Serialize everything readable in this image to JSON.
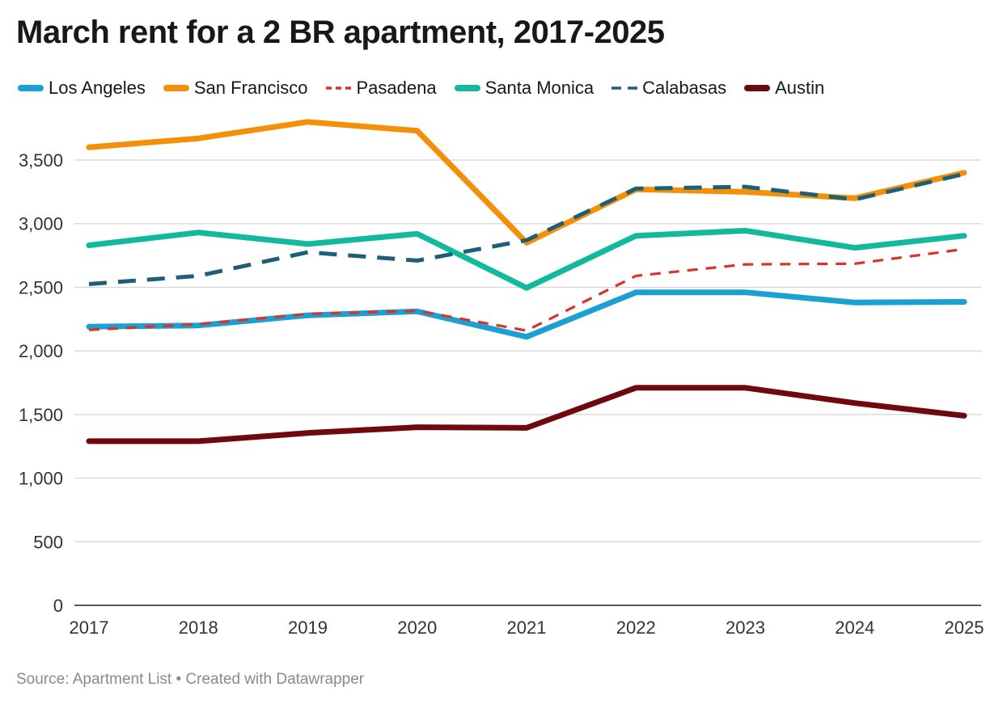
{
  "header": {
    "title": "March rent for a 2 BR apartment, 2017-2025"
  },
  "footer": {
    "source": "Source: Apartment List • Created with Datawrapper"
  },
  "chart_data": {
    "type": "line",
    "title": "March rent for a 2 BR apartment, 2017-2025",
    "xlabel": "",
    "ylabel": "",
    "x": [
      "2017",
      "2018",
      "2019",
      "2020",
      "2021",
      "2022",
      "2023",
      "2024",
      "2025"
    ],
    "y_ticks": [
      "0",
      "500",
      "1,000",
      "1,500",
      "2,000",
      "2,500",
      "3,000",
      "3,500"
    ],
    "y_tick_values": [
      0,
      500,
      1000,
      1500,
      2000,
      2500,
      3000,
      3500
    ],
    "ylim": [
      0,
      3800
    ],
    "grid": true,
    "legend_position": "top",
    "series": [
      {
        "name": "Los Angeles",
        "color": "#1aa0d2",
        "dashed": false,
        "values": [
          2190,
          2200,
          2280,
          2310,
          2110,
          2460,
          2460,
          2380,
          2385
        ]
      },
      {
        "name": "San Francisco",
        "color": "#f58f0a",
        "dashed": false,
        "values": [
          3600,
          3670,
          3800,
          3730,
          2850,
          3270,
          3250,
          3200,
          3400
        ]
      },
      {
        "name": "Pasadena",
        "color": "#d9342a",
        "dashed": true,
        "values": [
          2165,
          2210,
          2290,
          2315,
          2160,
          2590,
          2680,
          2685,
          2800
        ]
      },
      {
        "name": "Santa Monica",
        "color": "#13b99c",
        "dashed": false,
        "values": [
          2830,
          2930,
          2840,
          2920,
          2495,
          2905,
          2945,
          2810,
          2905
        ]
      },
      {
        "name": "Calabasas",
        "color": "#1d5f77",
        "dashed": true,
        "values": [
          2525,
          2590,
          2775,
          2710,
          2870,
          3275,
          3290,
          3190,
          3390
        ]
      },
      {
        "name": "Austin",
        "color": "#6e0a0f",
        "dashed": false,
        "values": [
          1290,
          1290,
          1355,
          1400,
          1395,
          1710,
          1710,
          1590,
          1490
        ]
      }
    ]
  }
}
